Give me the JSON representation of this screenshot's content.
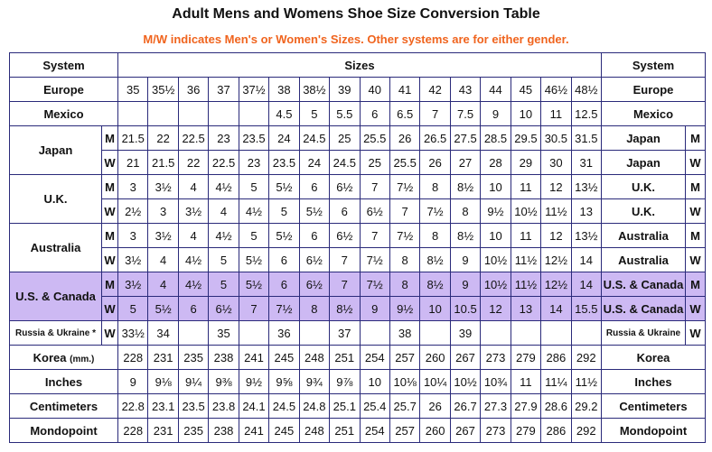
{
  "title": "Adult Mens and Womens Shoe Size Conversion Table",
  "subtitle": "M/W indicates Men's or Women's Sizes. Other systems are for either gender.",
  "table": {
    "header": {
      "left": "System",
      "middle": "Sizes",
      "right": "System"
    },
    "groups": [
      {
        "system": "Europe",
        "system_right": "Europe",
        "rows": [
          {
            "values": [
              "35",
              "35½",
              "36",
              "37",
              "37½",
              "38",
              "38½",
              "39",
              "40",
              "41",
              "42",
              "43",
              "44",
              "45",
              "46½",
              "48½"
            ]
          }
        ]
      },
      {
        "system": "Mexico",
        "system_right": "Mexico",
        "rows": [
          {
            "values": [
              null,
              null,
              null,
              null,
              null,
              "4.5",
              "5",
              "5.5",
              "6",
              "6.5",
              "7",
              "7.5",
              "9",
              "10",
              "11",
              "12.5"
            ]
          }
        ]
      },
      {
        "system": "Japan",
        "system_right": "Japan",
        "rows": [
          {
            "gender": "M",
            "values": [
              "21.5",
              "22",
              "22.5",
              "23",
              "23.5",
              "24",
              "24.5",
              "25",
              "25.5",
              "26",
              "26.5",
              "27.5",
              "28.5",
              "29.5",
              "30.5",
              "31.5"
            ]
          },
          {
            "gender": "W",
            "values": [
              "21",
              "21.5",
              "22",
              "22.5",
              "23",
              "23.5",
              "24",
              "24.5",
              "25",
              "25.5",
              "26",
              "27",
              "28",
              "29",
              "30",
              "31"
            ]
          }
        ]
      },
      {
        "system": "U.K.",
        "system_right": "U.K.",
        "rows": [
          {
            "gender": "M",
            "values": [
              "3",
              "3½",
              "4",
              "4½",
              "5",
              "5½",
              "6",
              "6½",
              "7",
              "7½",
              "8",
              "8½",
              "10",
              "11",
              "12",
              "13½"
            ]
          },
          {
            "gender": "W",
            "values": [
              "2½",
              "3",
              "3½",
              "4",
              "4½",
              "5",
              "5½",
              "6",
              "6½",
              "7",
              "7½",
              "8",
              "9½",
              "10½",
              "11½",
              "13"
            ]
          }
        ]
      },
      {
        "system": "Australia",
        "system_right": "Australia",
        "rows": [
          {
            "gender": "M",
            "values": [
              "3",
              "3½",
              "4",
              "4½",
              "5",
              "5½",
              "6",
              "6½",
              "7",
              "7½",
              "8",
              "8½",
              "10",
              "11",
              "12",
              "13½"
            ]
          },
          {
            "gender": "W",
            "values": [
              "3½",
              "4",
              "4½",
              "5",
              "5½",
              "6",
              "6½",
              "7",
              "7½",
              "8",
              "8½",
              "9",
              "10½",
              "11½",
              "12½",
              "14"
            ]
          }
        ]
      },
      {
        "system": "U.S. & Canada",
        "system_right": "U.S. & Canada",
        "highlight": true,
        "rows": [
          {
            "gender": "M",
            "values": [
              "3½",
              "4",
              "4½",
              "5",
              "5½",
              "6",
              "6½",
              "7",
              "7½",
              "8",
              "8½",
              "9",
              "10½",
              "11½",
              "12½",
              "14"
            ]
          },
          {
            "gender": "W",
            "values": [
              "5",
              "5½",
              "6",
              "6½",
              "7",
              "7½",
              "8",
              "8½",
              "9",
              "9½",
              "10",
              "10.5",
              "12",
              "13",
              "14",
              "15.5"
            ]
          }
        ]
      },
      {
        "system": "Russia & Ukraine *",
        "system_right": "Russia & Ukraine",
        "small": true,
        "rows": [
          {
            "gender": "W",
            "values": [
              "33½",
              "34",
              null,
              "35",
              null,
              "36",
              null,
              "37",
              null,
              "38",
              null,
              "39",
              null,
              null,
              null,
              null
            ]
          }
        ]
      },
      {
        "system": "Korea",
        "unit": "(mm.)",
        "system_right": "Korea",
        "rows": [
          {
            "values": [
              "228",
              "231",
              "235",
              "238",
              "241",
              "245",
              "248",
              "251",
              "254",
              "257",
              "260",
              "267",
              "273",
              "279",
              "286",
              "292"
            ]
          }
        ]
      },
      {
        "system": "Inches",
        "system_right": "Inches",
        "rows": [
          {
            "values": [
              "9",
              "9⅛",
              "9¼",
              "9⅜",
              "9½",
              "9⅝",
              "9¾",
              "9⅞",
              "10",
              "10⅛",
              "10¼",
              "10½",
              "10¾",
              "11",
              "11¼",
              "11½"
            ]
          }
        ]
      },
      {
        "system": "Centimeters",
        "system_right": "Centimeters",
        "rows": [
          {
            "values": [
              "22.8",
              "23.1",
              "23.5",
              "23.8",
              "24.1",
              "24.5",
              "24.8",
              "25.1",
              "25.4",
              "25.7",
              "26",
              "26.7",
              "27.3",
              "27.9",
              "28.6",
              "29.2"
            ]
          }
        ]
      },
      {
        "system": "Mondopoint",
        "system_right": "Mondopoint",
        "rows": [
          {
            "values": [
              "228",
              "231",
              "235",
              "238",
              "241",
              "245",
              "248",
              "251",
              "254",
              "257",
              "260",
              "267",
              "273",
              "279",
              "286",
              "292"
            ]
          }
        ]
      }
    ]
  }
}
